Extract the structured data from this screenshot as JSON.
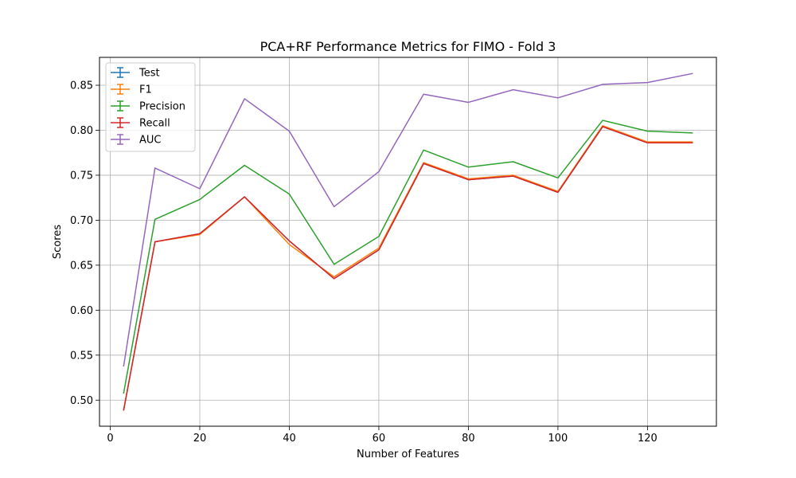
{
  "chart_data": {
    "type": "line",
    "title": "PCA+RF Performance Metrics for FIMO - Fold 3",
    "xlabel": "Number of Features",
    "ylabel": "Scores",
    "xlim": [
      -2.4,
      135.4
    ],
    "ylim": [
      0.471,
      0.881
    ],
    "xticks": [
      0,
      20,
      40,
      60,
      80,
      100,
      120
    ],
    "yticks": [
      0.5,
      0.55,
      0.6,
      0.65,
      0.7,
      0.75,
      0.8,
      0.85
    ],
    "ytick_labels": [
      "0.50",
      "0.55",
      "0.60",
      "0.65",
      "0.70",
      "0.75",
      "0.80",
      "0.85"
    ],
    "grid": true,
    "legend_position": "upper-left",
    "x": [
      3,
      10,
      20,
      30,
      40,
      50,
      60,
      70,
      80,
      90,
      100,
      110,
      120,
      130
    ],
    "series": [
      {
        "name": "Test",
        "color": "#1f77b4",
        "values": [
          0.489,
          0.676,
          0.685,
          0.726,
          0.677,
          0.635,
          0.667,
          0.763,
          0.745,
          0.749,
          0.731,
          0.804,
          0.786,
          0.786
        ]
      },
      {
        "name": "F1",
        "color": "#ff7f0e",
        "values": [
          0.489,
          0.676,
          0.684,
          0.726,
          0.673,
          0.637,
          0.669,
          0.764,
          0.746,
          0.75,
          0.732,
          0.805,
          0.787,
          0.787
        ]
      },
      {
        "name": "Precision",
        "color": "#2ca02c",
        "values": [
          0.508,
          0.701,
          0.723,
          0.761,
          0.729,
          0.651,
          0.682,
          0.778,
          0.759,
          0.765,
          0.747,
          0.811,
          0.799,
          0.797
        ]
      },
      {
        "name": "Recall",
        "color": "#d62728",
        "values": [
          0.489,
          0.676,
          0.685,
          0.726,
          0.677,
          0.635,
          0.667,
          0.763,
          0.745,
          0.749,
          0.731,
          0.804,
          0.786,
          0.786
        ]
      },
      {
        "name": "AUC",
        "color": "#9467bd",
        "values": [
          0.538,
          0.758,
          0.735,
          0.835,
          0.799,
          0.715,
          0.754,
          0.84,
          0.831,
          0.845,
          0.836,
          0.851,
          0.853,
          0.863
        ]
      }
    ]
  }
}
